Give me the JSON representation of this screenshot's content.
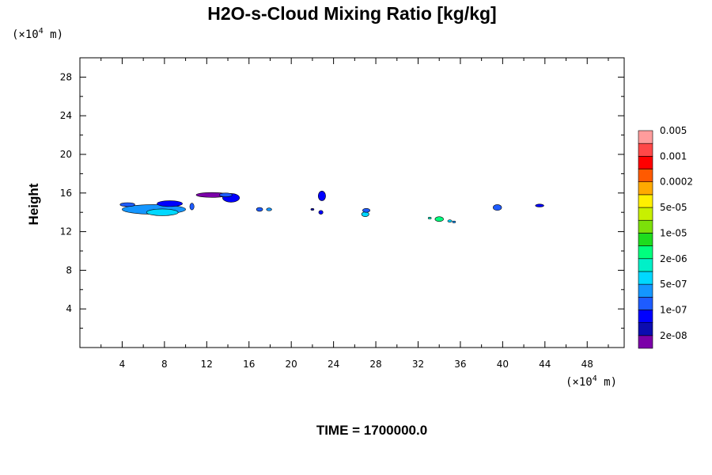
{
  "chart_data": {
    "type": "contour",
    "title": "H2O-s-Cloud Mixing Ratio [kg/kg]",
    "ylabel": "Height",
    "y_unit": {
      "prefix": "(×10",
      "exp": "4",
      "suffix": " m)"
    },
    "x_unit": {
      "prefix": "(×10",
      "exp": "4",
      "suffix": " m)"
    },
    "xlim": [
      0,
      51.5
    ],
    "ylim": [
      0,
      30
    ],
    "x_ticks": [
      "4",
      "8",
      "12",
      "16",
      "20",
      "24",
      "28",
      "32",
      "36",
      "40",
      "44",
      "48"
    ],
    "y_ticks": [
      "4",
      "8",
      "12",
      "16",
      "20",
      "24",
      "28"
    ],
    "footer": "TIME = 1700000.0",
    "colorbar": {
      "colors": [
        "#7b00a8",
        "#0c0cb0",
        "#0000ff",
        "#1e5cff",
        "#1496ff",
        "#00d8ff",
        "#00f0c8",
        "#00ff7e",
        "#1edc1e",
        "#7ce00a",
        "#c8f000",
        "#fff000",
        "#ffaa00",
        "#ff5a00",
        "#ff0000",
        "#ff4848",
        "#ff9c9c"
      ],
      "labels": [
        "2e-08",
        "1e-07",
        "5e-07",
        "2e-06",
        "1e-05",
        "5e-05",
        "0.0002",
        "0.001",
        "0.005"
      ]
    },
    "cloud_patches": [
      {
        "x": 7.0,
        "y": 14.3,
        "rx": 3.0,
        "ry": 0.5,
        "color": "#1496ff"
      },
      {
        "x": 7.8,
        "y": 14.0,
        "rx": 1.5,
        "ry": 0.35,
        "color": "#00d8ff"
      },
      {
        "x": 8.5,
        "y": 14.9,
        "rx": 1.2,
        "ry": 0.3,
        "color": "#0000ff"
      },
      {
        "x": 4.5,
        "y": 14.8,
        "rx": 0.7,
        "ry": 0.2,
        "color": "#1e5cff"
      },
      {
        "x": 10.6,
        "y": 14.6,
        "rx": 0.2,
        "ry": 0.35,
        "color": "#1e5cff"
      },
      {
        "x": 12.5,
        "y": 15.8,
        "rx": 1.5,
        "ry": 0.25,
        "color": "#7b00a8"
      },
      {
        "x": 14.3,
        "y": 15.5,
        "rx": 0.8,
        "ry": 0.45,
        "color": "#0000ff"
      },
      {
        "x": 13.8,
        "y": 15.8,
        "rx": 0.6,
        "ry": 0.2,
        "color": "#1e5cff"
      },
      {
        "x": 17.0,
        "y": 14.3,
        "rx": 0.3,
        "ry": 0.2,
        "color": "#1e5cff"
      },
      {
        "x": 17.9,
        "y": 14.3,
        "rx": 0.25,
        "ry": 0.15,
        "color": "#1496ff"
      },
      {
        "x": 22.9,
        "y": 15.7,
        "rx": 0.35,
        "ry": 0.5,
        "color": "#0000ff"
      },
      {
        "x": 22.0,
        "y": 14.3,
        "rx": 0.15,
        "ry": 0.1,
        "color": "#0c0cb0"
      },
      {
        "x": 22.8,
        "y": 14.0,
        "rx": 0.2,
        "ry": 0.2,
        "color": "#0000ff"
      },
      {
        "x": 27.0,
        "y": 13.8,
        "rx": 0.35,
        "ry": 0.25,
        "color": "#00d8ff"
      },
      {
        "x": 27.1,
        "y": 14.2,
        "rx": 0.35,
        "ry": 0.2,
        "color": "#1e5cff"
      },
      {
        "x": 33.1,
        "y": 13.4,
        "rx": 0.15,
        "ry": 0.1,
        "color": "#00f0c8"
      },
      {
        "x": 34.0,
        "y": 13.3,
        "rx": 0.4,
        "ry": 0.25,
        "color": "#00ff7e"
      },
      {
        "x": 35.0,
        "y": 13.1,
        "rx": 0.2,
        "ry": 0.12,
        "color": "#00d8ff"
      },
      {
        "x": 35.4,
        "y": 13.0,
        "rx": 0.15,
        "ry": 0.1,
        "color": "#1496ff"
      },
      {
        "x": 39.5,
        "y": 14.5,
        "rx": 0.4,
        "ry": 0.3,
        "color": "#1e5cff"
      },
      {
        "x": 43.5,
        "y": 14.7,
        "rx": 0.4,
        "ry": 0.15,
        "color": "#0000ff"
      }
    ]
  }
}
